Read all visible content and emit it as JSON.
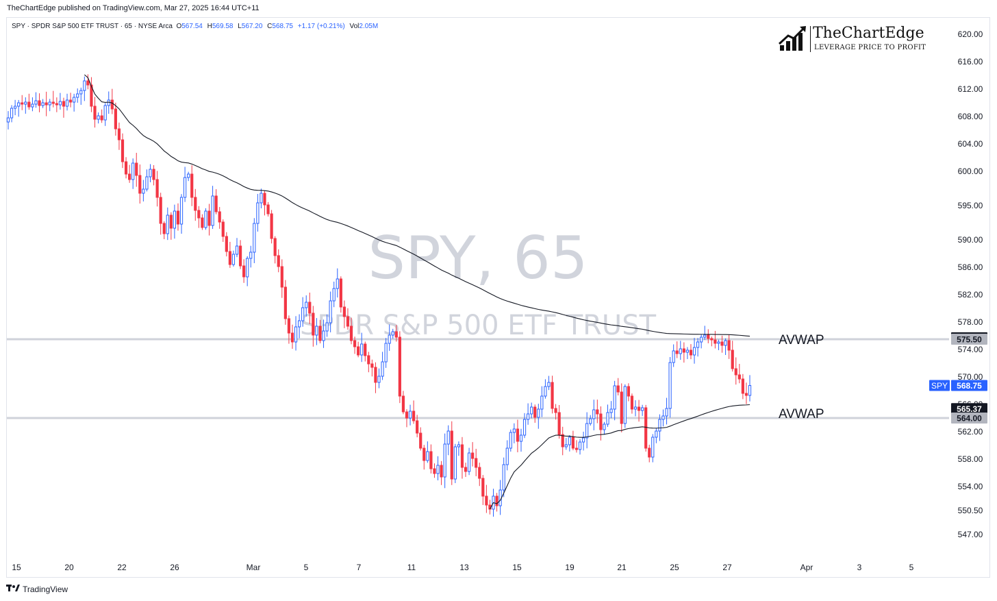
{
  "publish_line": "TheChartEdge published on TradingView.com, Mar 27, 2025 16:44 UTC+11",
  "legend": {
    "symbol": "SPY · SPDR S&P 500 ETF TRUST · 65 · NYSE Arca",
    "open_label": "O",
    "open": "567.54",
    "high_label": "H",
    "high": "569.58",
    "low_label": "L",
    "low": "567.20",
    "close_label": "C",
    "close": "568.75",
    "change": "+1.17 (+0.21%)",
    "vol_label": "Vol",
    "vol": "2.05M"
  },
  "brand": {
    "name": "TheChartEdge",
    "tagline": "LEVERAGE PRICE TO PROFIT",
    "icon": "bar-chart-arrow-icon"
  },
  "footer": {
    "logo_icon": "tradingview-logo-icon",
    "text": "TradingView"
  },
  "chart_data": {
    "type": "candlestick",
    "watermark": [
      "SPY, 65",
      "SPDR S&P 500 ETF TRUST"
    ],
    "ylim": [
      545,
      621
    ],
    "y_ticks": [
      "620.00",
      "616.00",
      "612.00",
      "608.00",
      "604.00",
      "600.00",
      "595.00",
      "590.00",
      "586.00",
      "582.00",
      "578.00",
      "574.00",
      "570.00",
      "566.00",
      "562.00",
      "558.00",
      "554.00",
      "550.50",
      "547.00"
    ],
    "x_ticks": [
      "15",
      "20",
      "22",
      "26",
      "Mar",
      "5",
      "7",
      "11",
      "13",
      "15",
      "19",
      "21",
      "25",
      "27",
      "Apr",
      "3",
      "5"
    ],
    "horizontal_levels": [
      575.5,
      564.0
    ],
    "axis_badges": [
      {
        "label": "",
        "value": "575.71",
        "style": "dark"
      },
      {
        "label": "",
        "value": "575.50",
        "style": "grey"
      },
      {
        "label": "SPY",
        "value": "568.75",
        "style": "blue"
      },
      {
        "label": "",
        "value": "565.37",
        "style": "dark"
      },
      {
        "label": "",
        "value": "564.00",
        "style": "grey"
      }
    ],
    "annotations": [
      {
        "text": "AVWAP",
        "price": 575.5
      },
      {
        "text": "AVWAP",
        "price": 564.7
      }
    ],
    "colors": {
      "up": "#2962ff",
      "down": "#f23645",
      "line": "#131722",
      "level": "#cfd2da"
    },
    "close_series": [
      607.8,
      609.2,
      609.5,
      610.0,
      609.8,
      610.1,
      609.4,
      609.8,
      610.3,
      609.6,
      610.0,
      609.7,
      610.1,
      609.9,
      609.7,
      610.2,
      609.5,
      610.4,
      610.1,
      610.8,
      611.3,
      611.8,
      613.2,
      612.6,
      609.5,
      607.6,
      608.1,
      607.5,
      609.6,
      610.4,
      609.1,
      606.2,
      604.6,
      601.4,
      599.6,
      598.8,
      601.2,
      599.4,
      596.8,
      597.4,
      599.2,
      600.3,
      598.8,
      596.2,
      592.4,
      590.9,
      593.6,
      591.7,
      594.2,
      592.3,
      596.2,
      599.1,
      599.6,
      596.2,
      594.3,
      593.2,
      591.8,
      594.2,
      592.1,
      596.4,
      594.1,
      592.6,
      590.5,
      588.3,
      586.4,
      587.9,
      589.1,
      586.2,
      584.6,
      587.3,
      588.2,
      592.4,
      595.4,
      596.8,
      595.1,
      593.8,
      590.2,
      587.7,
      586.1,
      583.1,
      578.5,
      576.4,
      575.1,
      577.3,
      578.2,
      580.1,
      580.9,
      579.3,
      576.1,
      577.4,
      575.3,
      576.7,
      577.9,
      581.1,
      582.9,
      584.3,
      580.2,
      578.8,
      577.4,
      575.3,
      574.4,
      573.2,
      574.8,
      573.1,
      571.9,
      571.4,
      569.2,
      570.1,
      572.2,
      574.9,
      576.1,
      576.6,
      575.8,
      567.2,
      564.9,
      564.0,
      565.0,
      563.6,
      561.8,
      559.6,
      557.8,
      559.1,
      556.6,
      555.9,
      557.1,
      555.4,
      560.2,
      562.1,
      555.1,
      559.8,
      560.1,
      556.8,
      556.2,
      558.9,
      558.1,
      556.8,
      555.2,
      552.6,
      551.3,
      550.7,
      552.6,
      551.2,
      553.5,
      557.2,
      559.6,
      561.9,
      562.4,
      560.6,
      561.5,
      563.8,
      564.6,
      565.6,
      564.1,
      565.3,
      567.2,
      568.6,
      569.2,
      565.4,
      564.8,
      561.6,
      559.8,
      560.1,
      561.2,
      559.6,
      559.4,
      560.5,
      561.1,
      563.2,
      563.9,
      565.2,
      564.6,
      562.3,
      563.1,
      564.8,
      565.3,
      568.7,
      567.8,
      563.2,
      568.6,
      567.2,
      565.3,
      565.6,
      565.1,
      565.5,
      559.6,
      558.3,
      561.2,
      562.1,
      563.8,
      564.3,
      565.4,
      572.1,
      573.8,
      573.4,
      574.1,
      573.6,
      573.9,
      573.2,
      574.3,
      575.1,
      575.8,
      576.1,
      575.6,
      575.4,
      574.9,
      575.1,
      574.6,
      575.3,
      573.9,
      571.2,
      570.3,
      569.7,
      567.6,
      567.3,
      568.75
    ]
  }
}
